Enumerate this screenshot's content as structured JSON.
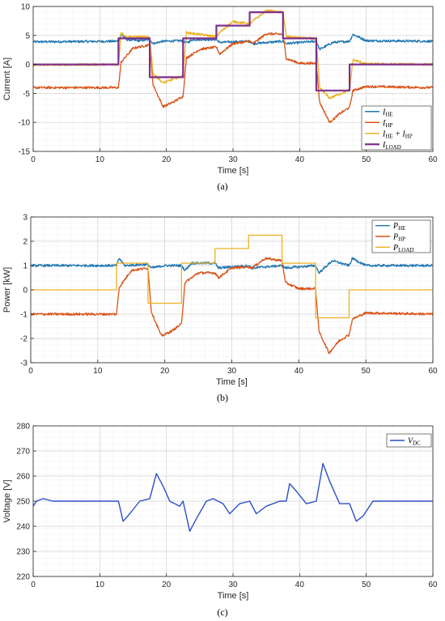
{
  "chart_data": [
    {
      "type": "line",
      "caption": "(a)",
      "xlabel": "Time [s]",
      "ylabel": "Current [A]",
      "xlim": [
        0,
        60
      ],
      "ylim": [
        -15,
        10
      ],
      "xticks": [
        "0",
        "10",
        "20",
        "30",
        "40",
        "50",
        "60"
      ],
      "yticks": [
        "-15",
        "-10",
        "-5",
        "0",
        "5",
        "10"
      ],
      "grid": true,
      "legend": "bottom-right",
      "series": [
        {
          "name": "I_HE",
          "legend_main": "I",
          "legend_sub": "HE",
          "color": "#1f77b4",
          "points": [
            [
              0,
              3.9
            ],
            [
              12.8,
              4.0
            ],
            [
              13.2,
              5.2
            ],
            [
              14,
              4.3
            ],
            [
              16,
              4.1
            ],
            [
              17.5,
              4.3
            ],
            [
              18,
              3.6
            ],
            [
              19.5,
              4.0
            ],
            [
              22.5,
              4.1
            ],
            [
              23,
              3.7
            ],
            [
              24,
              4.3
            ],
            [
              27.5,
              4.3
            ],
            [
              28,
              3.8
            ],
            [
              32.5,
              4.0
            ],
            [
              33,
              3.6
            ],
            [
              37.5,
              4.0
            ],
            [
              38,
              3.6
            ],
            [
              42.5,
              4.0
            ],
            [
              43,
              2.6
            ],
            [
              45,
              3.8
            ],
            [
              47.5,
              4.0
            ],
            [
              48,
              5.2
            ],
            [
              50,
              4.1
            ],
            [
              60,
              4.0
            ]
          ]
        },
        {
          "name": "I_HP",
          "legend_main": "I",
          "legend_sub": "HP",
          "color": "#d95319",
          "points": [
            [
              0,
              -4.0
            ],
            [
              12.8,
              -4.0
            ],
            [
              13.2,
              0.4
            ],
            [
              15,
              2.8
            ],
            [
              17.5,
              3.4
            ],
            [
              18,
              -3.5
            ],
            [
              19.5,
              -7.3
            ],
            [
              21,
              -6.5
            ],
            [
              22.5,
              -5.5
            ],
            [
              23,
              1.1
            ],
            [
              25,
              2.6
            ],
            [
              27.5,
              3.0
            ],
            [
              28,
              1.8
            ],
            [
              30,
              3.6
            ],
            [
              32.5,
              4.0
            ],
            [
              33,
              3.6
            ],
            [
              35,
              5.3
            ],
            [
              37.5,
              5.2
            ],
            [
              38,
              1.0
            ],
            [
              40,
              0.2
            ],
            [
              42.5,
              0.2
            ],
            [
              43,
              -6.5
            ],
            [
              44.5,
              -10.0
            ],
            [
              46,
              -8.5
            ],
            [
              47.5,
              -7.4
            ],
            [
              48,
              -4.5
            ],
            [
              50,
              -3.8
            ],
            [
              60,
              -4.0
            ]
          ]
        },
        {
          "name": "I_HE + I_HP",
          "legend_main": "I",
          "legend_sub": "HE",
          "legend_extra": " + I",
          "legend_sub2": "HP",
          "color": "#edb120",
          "points": [
            [
              0,
              -0.1
            ],
            [
              12.8,
              0
            ],
            [
              13.2,
              5.5
            ],
            [
              14,
              4.8
            ],
            [
              17.5,
              4.7
            ],
            [
              18,
              -1.6
            ],
            [
              19.5,
              -3.2
            ],
            [
              22.5,
              -1.9
            ],
            [
              23,
              5.5
            ],
            [
              27.5,
              4.8
            ],
            [
              28,
              5.5
            ],
            [
              30,
              7.4
            ],
            [
              32.5,
              7.0
            ],
            [
              33,
              7.5
            ],
            [
              35,
              9.3
            ],
            [
              37.5,
              9.0
            ],
            [
              38,
              4.8
            ],
            [
              42.5,
              4.4
            ],
            [
              43,
              -4.0
            ],
            [
              44.5,
              -5.8
            ],
            [
              47.5,
              -4.4
            ],
            [
              48,
              0.8
            ],
            [
              50,
              0.1
            ],
            [
              60,
              0
            ]
          ]
        },
        {
          "name": "I_LOAD",
          "legend_main": "I",
          "legend_sub": "LOAD",
          "color": "#7e2f8e",
          "points": [
            [
              0,
              0
            ],
            [
              12.8,
              0
            ],
            [
              12.8,
              4.5
            ],
            [
              17.5,
              4.5
            ],
            [
              17.5,
              -2.2
            ],
            [
              22.5,
              -2.2
            ],
            [
              22.5,
              4.5
            ],
            [
              27.5,
              4.5
            ],
            [
              27.5,
              6.7
            ],
            [
              32.5,
              6.7
            ],
            [
              32.5,
              9.0
            ],
            [
              37.5,
              9.0
            ],
            [
              37.5,
              4.5
            ],
            [
              42.5,
              4.5
            ],
            [
              42.5,
              -4.5
            ],
            [
              47.5,
              -4.5
            ],
            [
              47.5,
              0
            ],
            [
              60,
              0
            ]
          ]
        }
      ]
    },
    {
      "type": "line",
      "caption": "(b)",
      "xlabel": "Time [s]",
      "ylabel": "Power [kW]",
      "xlim": [
        0,
        60
      ],
      "ylim": [
        -3,
        3
      ],
      "xticks": [
        "0",
        "10",
        "20",
        "30",
        "40",
        "50",
        "60"
      ],
      "yticks": [
        "-3",
        "-2",
        "-1",
        "0",
        "1",
        "2",
        "3"
      ],
      "grid": true,
      "legend": "top-right",
      "series": [
        {
          "name": "P_HE",
          "legend_main": "P",
          "legend_sub": "HE",
          "color": "#1f77b4",
          "points": [
            [
              0,
              1.0
            ],
            [
              12.8,
              1.0
            ],
            [
              13.2,
              1.3
            ],
            [
              14,
              1.0
            ],
            [
              17.5,
              1.05
            ],
            [
              18,
              0.9
            ],
            [
              20,
              1.0
            ],
            [
              22.5,
              1.0
            ],
            [
              23,
              0.8
            ],
            [
              24,
              1.1
            ],
            [
              27.5,
              1.1
            ],
            [
              28,
              0.9
            ],
            [
              32.5,
              1.0
            ],
            [
              33,
              0.9
            ],
            [
              37.5,
              1.0
            ],
            [
              38,
              0.9
            ],
            [
              42.5,
              1.0
            ],
            [
              43,
              0.7
            ],
            [
              45,
              1.2
            ],
            [
              47.5,
              1.0
            ],
            [
              48,
              1.3
            ],
            [
              50,
              1.0
            ],
            [
              60,
              1.0
            ]
          ]
        },
        {
          "name": "P_HP",
          "legend_main": "P",
          "legend_sub": "HP",
          "color": "#d95319",
          "points": [
            [
              0,
              -1.0
            ],
            [
              12.8,
              -1.0
            ],
            [
              13.2,
              0.1
            ],
            [
              15,
              0.8
            ],
            [
              17.5,
              0.9
            ],
            [
              18,
              -0.9
            ],
            [
              19.5,
              -1.9
            ],
            [
              21,
              -1.7
            ],
            [
              22.5,
              -1.4
            ],
            [
              23,
              0.3
            ],
            [
              25,
              0.7
            ],
            [
              27.5,
              0.7
            ],
            [
              28,
              0.5
            ],
            [
              30,
              0.9
            ],
            [
              32.5,
              0.95
            ],
            [
              33,
              0.9
            ],
            [
              35,
              1.3
            ],
            [
              37.5,
              1.2
            ],
            [
              38,
              0.3
            ],
            [
              40,
              0.05
            ],
            [
              42.5,
              0.05
            ],
            [
              43,
              -1.7
            ],
            [
              44.5,
              -2.6
            ],
            [
              46,
              -2.1
            ],
            [
              47.5,
              -1.85
            ],
            [
              48,
              -1.2
            ],
            [
              50,
              -0.95
            ],
            [
              60,
              -1.0
            ]
          ]
        },
        {
          "name": "P_LOAD",
          "legend_main": "P",
          "legend_sub": "LOAD",
          "color": "#edb120",
          "points": [
            [
              0,
              0
            ],
            [
              12.8,
              0
            ],
            [
              12.8,
              1.1
            ],
            [
              17.5,
              1.1
            ],
            [
              17.5,
              -0.55
            ],
            [
              22.5,
              -0.55
            ],
            [
              22.5,
              1.1
            ],
            [
              27.5,
              1.1
            ],
            [
              27.5,
              1.7
            ],
            [
              32.5,
              1.7
            ],
            [
              32.5,
              2.25
            ],
            [
              37.5,
              2.25
            ],
            [
              37.5,
              1.1
            ],
            [
              42.5,
              1.1
            ],
            [
              42.5,
              -1.15
            ],
            [
              47.5,
              -1.15
            ],
            [
              47.5,
              0
            ],
            [
              60,
              0
            ]
          ]
        }
      ]
    },
    {
      "type": "line",
      "caption": "(c)",
      "xlabel": "Time [s]",
      "ylabel": "Voltage [V]",
      "xlim": [
        0,
        60
      ],
      "ylim": [
        220,
        280
      ],
      "xticks": [
        "0",
        "10",
        "20",
        "30",
        "40",
        "50",
        "60"
      ],
      "yticks": [
        "220",
        "230",
        "240",
        "250",
        "260",
        "270",
        "280"
      ],
      "grid": true,
      "legend": "top-right",
      "series": [
        {
          "name": "V_DC",
          "legend_main": "V",
          "legend_sub": "DC",
          "color": "#2b4fc9",
          "points": [
            [
              0,
              248
            ],
            [
              0.5,
              250
            ],
            [
              1.5,
              251
            ],
            [
              3,
              250
            ],
            [
              12.8,
              250
            ],
            [
              13.5,
              242
            ],
            [
              14.5,
              245
            ],
            [
              16,
              250
            ],
            [
              17.5,
              251
            ],
            [
              18.5,
              261
            ],
            [
              19.5,
              256
            ],
            [
              20.5,
              250
            ],
            [
              22,
              248
            ],
            [
              22.5,
              250
            ],
            [
              23.5,
              238
            ],
            [
              24.5,
              243
            ],
            [
              26,
              250
            ],
            [
              27,
              251
            ],
            [
              28.5,
              249
            ],
            [
              29.5,
              245
            ],
            [
              31,
              249
            ],
            [
              32.5,
              250
            ],
            [
              33.5,
              245
            ],
            [
              35,
              248
            ],
            [
              37,
              250
            ],
            [
              38,
              250
            ],
            [
              38.5,
              257
            ],
            [
              39.5,
              254
            ],
            [
              41,
              249
            ],
            [
              42.5,
              250
            ],
            [
              43.5,
              265
            ],
            [
              44.5,
              258
            ],
            [
              46,
              249
            ],
            [
              47.5,
              249
            ],
            [
              48.5,
              242
            ],
            [
              49.5,
              244
            ],
            [
              51,
              250
            ],
            [
              53,
              250
            ],
            [
              60,
              250
            ]
          ]
        }
      ]
    }
  ]
}
